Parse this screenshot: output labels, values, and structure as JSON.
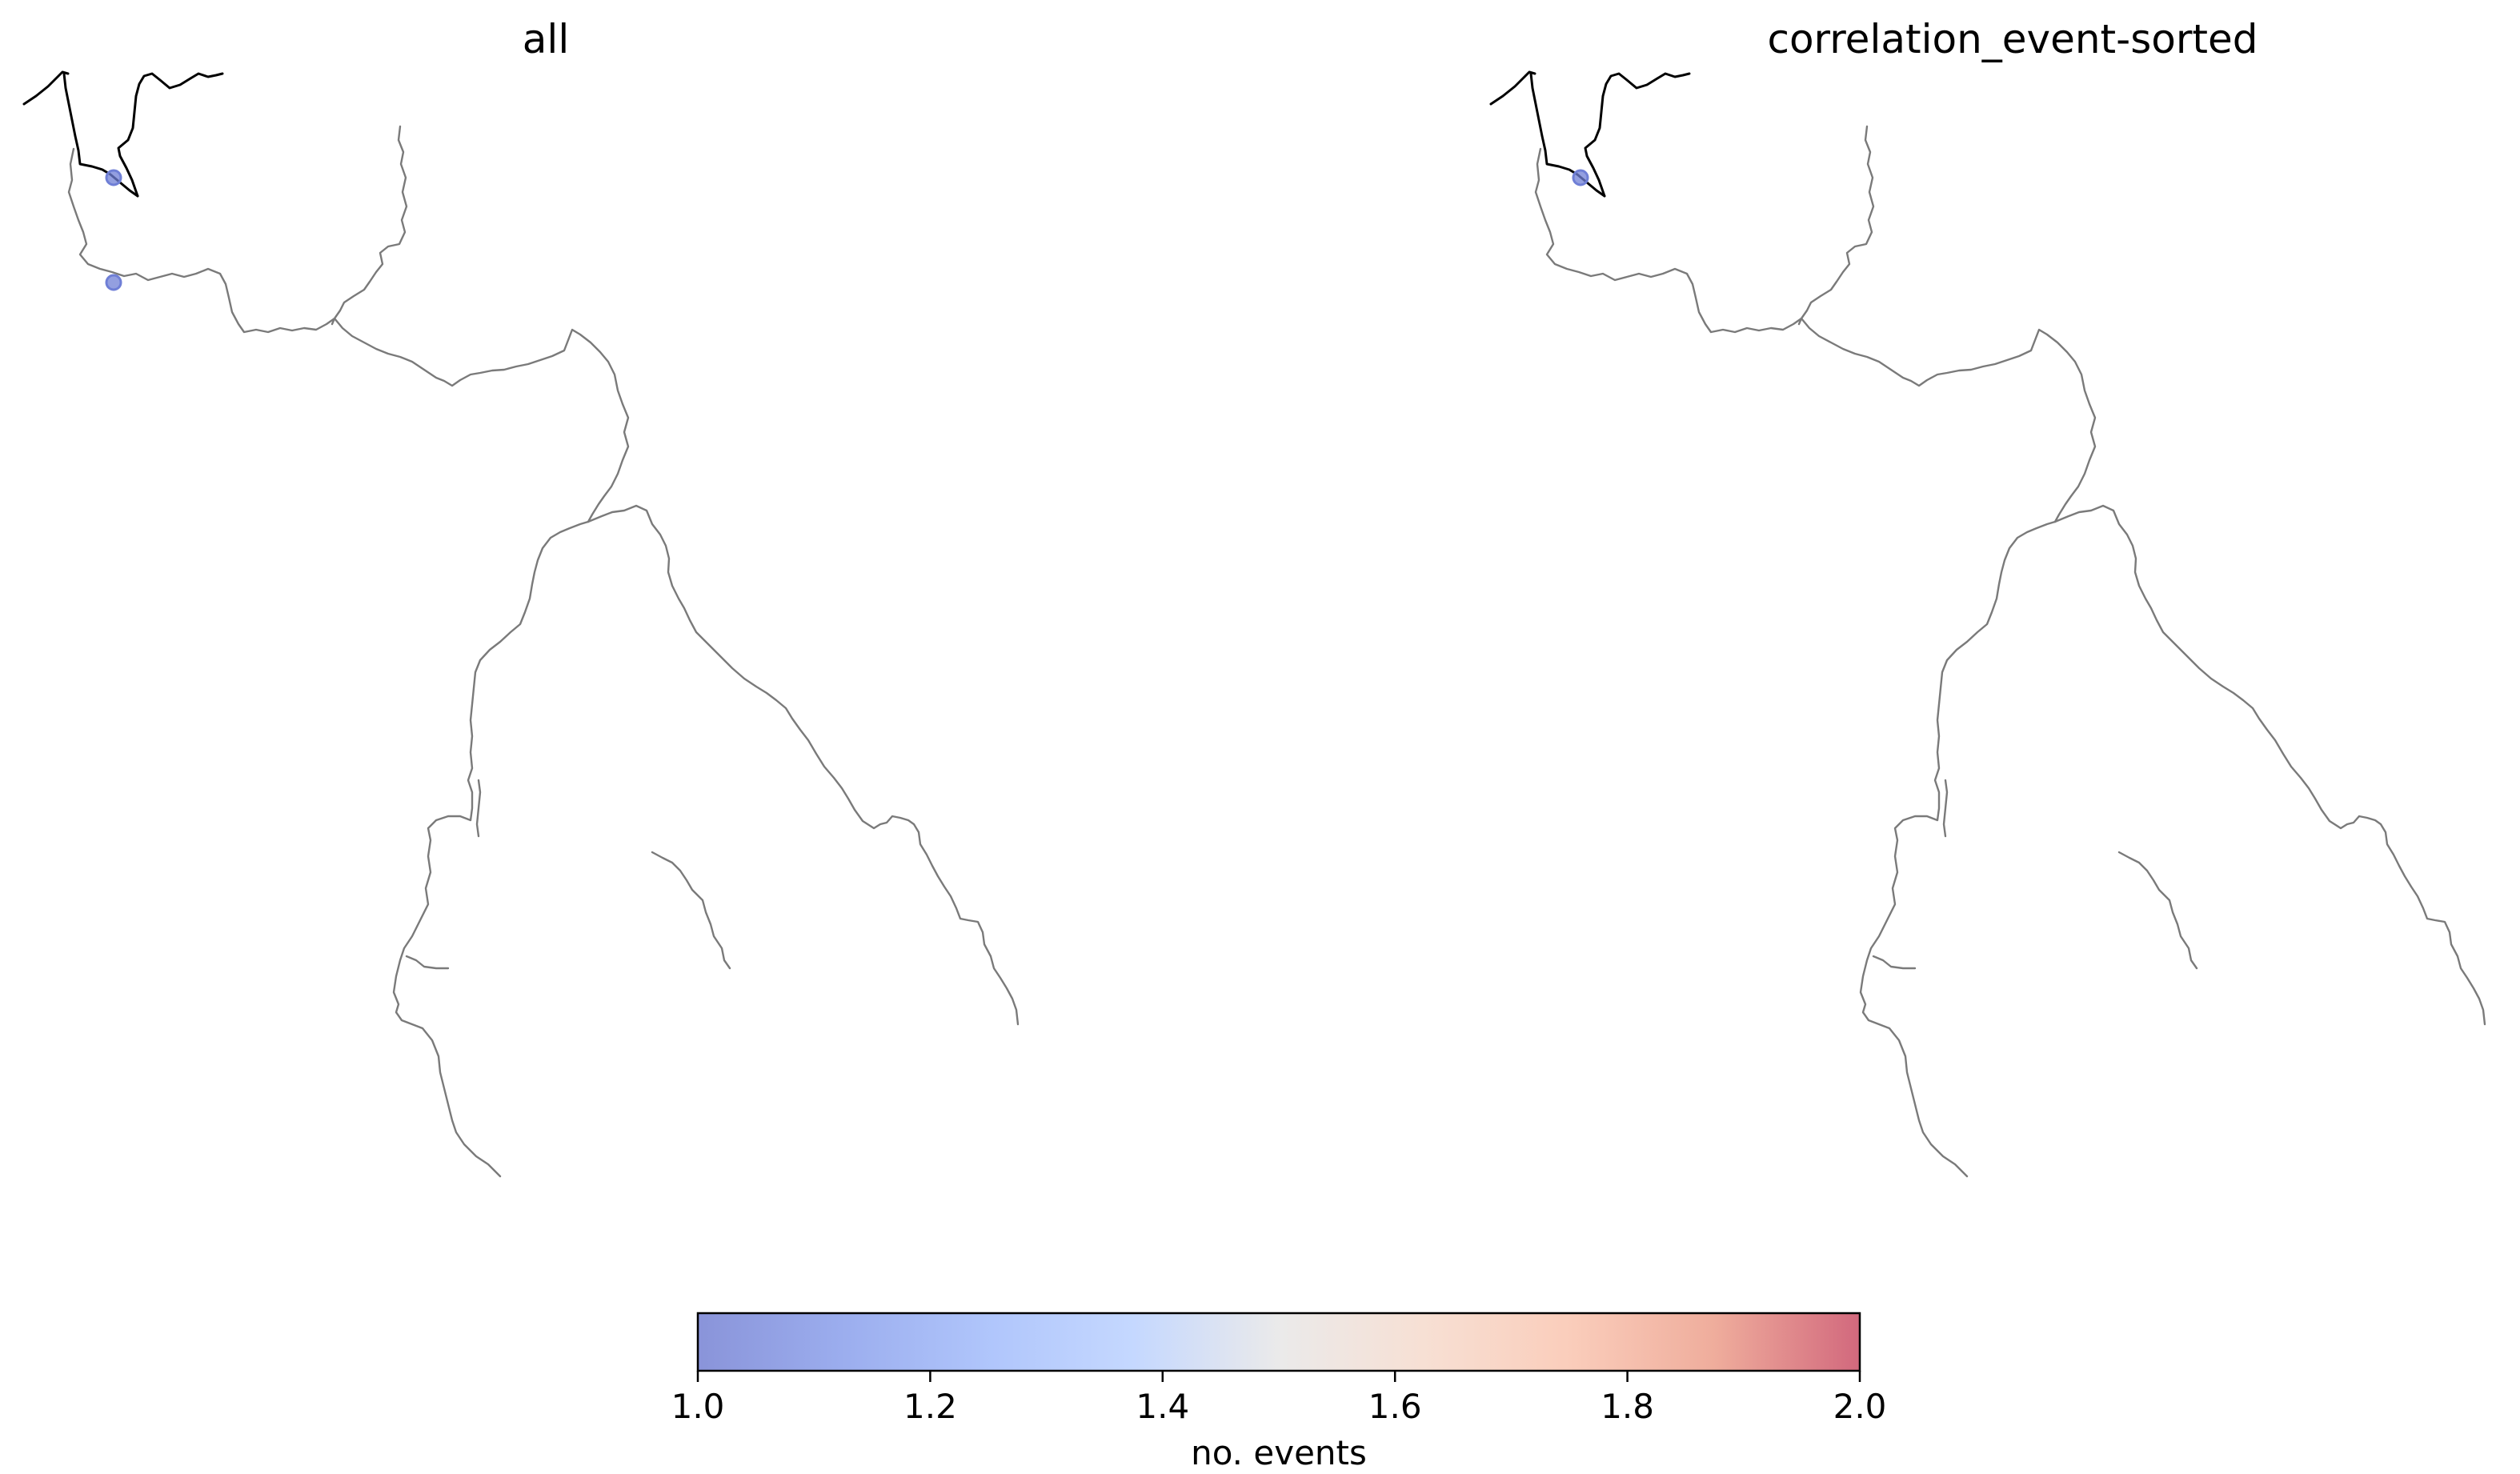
{
  "panels": [
    {
      "title": "all",
      "events": [
        {
          "id": "event-1",
          "count": 1.0
        },
        {
          "id": "event-2",
          "count": 1.0
        }
      ]
    },
    {
      "title": "correlation_event-sorted",
      "events": [
        {
          "id": "event-1",
          "count": 1.0
        }
      ]
    }
  ],
  "colorbar": {
    "label": "no. events",
    "min": 1.0,
    "max": 2.0,
    "ticks": [
      "1.0",
      "1.2",
      "1.4",
      "1.6",
      "1.8",
      "2.0"
    ],
    "colormap": "coolwarm",
    "alpha": 0.6,
    "colors": {
      "low": "#3b4cc0",
      "mid": "#dddddd",
      "high": "#b40426"
    }
  },
  "styles": {
    "river_color": "#7a7a7a",
    "coast_color": "#000000",
    "point_color": "#6f7fd6"
  }
}
